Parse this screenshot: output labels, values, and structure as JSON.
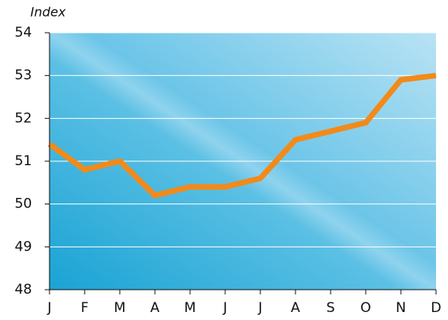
{
  "chart_data": {
    "type": "line",
    "y_label": "Index",
    "categories": [
      "J",
      "F",
      "M",
      "A",
      "M",
      "J",
      "J",
      "A",
      "S",
      "O",
      "N",
      "D"
    ],
    "series": [
      {
        "name": "Index",
        "color": "#f28a1a",
        "values": [
          51.4,
          50.8,
          51.0,
          50.2,
          50.4,
          50.4,
          50.6,
          51.5,
          51.7,
          51.9,
          52.9,
          53.0
        ]
      }
    ],
    "ylim": [
      48,
      54
    ],
    "yticks": [
      48,
      49,
      50,
      51,
      52,
      53,
      54
    ],
    "grid": true,
    "legend": false
  }
}
